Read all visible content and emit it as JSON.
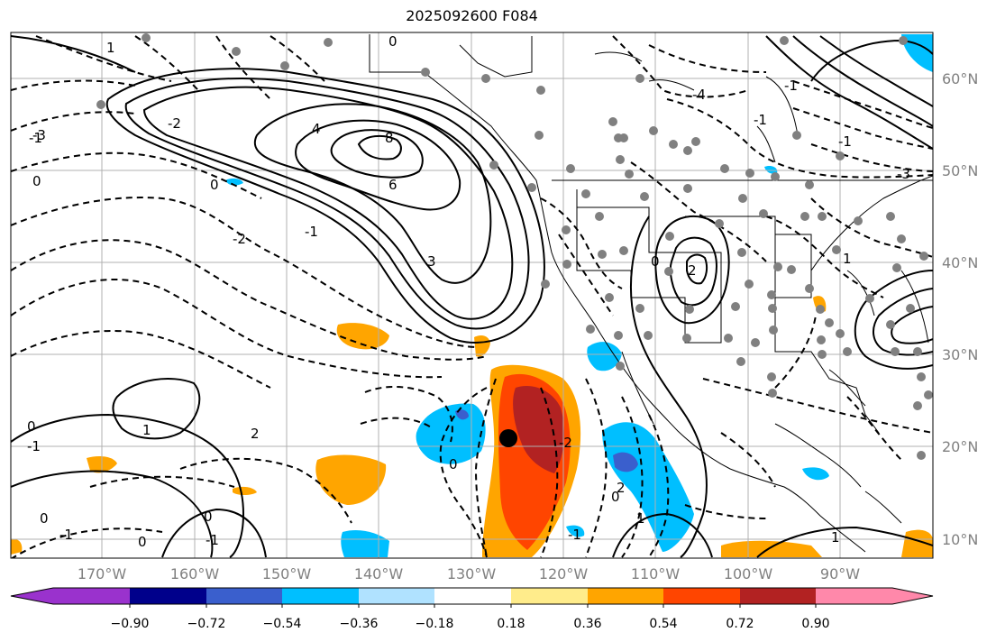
{
  "title": "2025092600 F084",
  "lat_labels": [
    "60°N",
    "50°N",
    "40°N",
    "30°N",
    "20°N",
    "10°N"
  ],
  "lon_labels": [
    "170°W",
    "160°W",
    "150°W",
    "140°W",
    "130°W",
    "120°W",
    "110°W",
    "100°W",
    "90°W"
  ],
  "colorbar": {
    "ticks": [
      "−0.90",
      "−0.72",
      "−0.54",
      "−0.36",
      "−0.18",
      "0.18",
      "0.36",
      "0.54",
      "0.72",
      "0.90"
    ],
    "colors": [
      "#9a32cd",
      "#00008b",
      "#3a5fcd",
      "#00bfff",
      "#b0e2ff",
      "#ffffff",
      "#ffec8b",
      "#ffa500",
      "#ff4500",
      "#b22222",
      "#ff88aa"
    ]
  },
  "contour_labels": [
    "0",
    "1",
    "-1",
    "-3",
    "-2",
    "4",
    "8",
    "6",
    "3",
    "0",
    "-1",
    "0",
    "-2",
    "0",
    "-1",
    "1",
    "-1",
    "0",
    "0",
    "2",
    "0",
    "-1",
    "-2",
    "0",
    "0",
    "2",
    "1",
    "1",
    "-3",
    "-4",
    "-1",
    "-1",
    "0",
    "2",
    "1",
    "-1",
    "-1"
  ],
  "storm_marker": "black-dot"
}
